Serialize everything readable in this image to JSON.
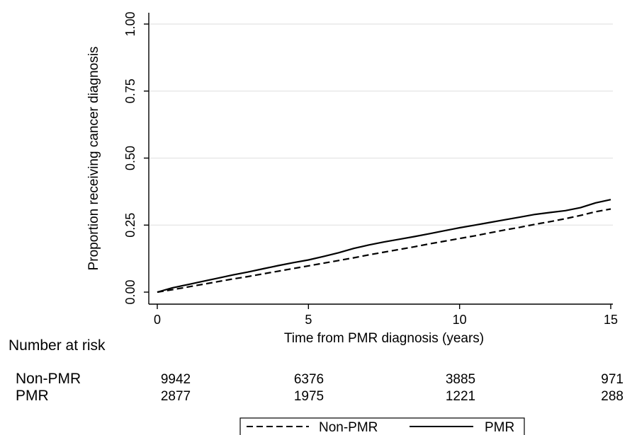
{
  "chart_data": {
    "type": "line",
    "xlabel": "Time from PMR diagnosis (years)",
    "ylabel": "Proportion receiving cancer diagnosis",
    "xlim": [
      0,
      15
    ],
    "ylim": [
      0,
      1
    ],
    "xticks": [
      0,
      5,
      10,
      15
    ],
    "yticks": [
      0,
      0.25,
      0.5,
      0.75,
      1
    ],
    "xtick_labels": [
      "0",
      "5",
      "10",
      "15"
    ],
    "ytick_labels": [
      "0.00",
      "0.25",
      "0.50",
      "0.75",
      "1.00"
    ],
    "grid": "horizontal",
    "series": [
      {
        "name": "Non-PMR",
        "style": "dashed",
        "color": "#000000",
        "points": [
          [
            0,
            0
          ],
          [
            0.5,
            0.009
          ],
          [
            1,
            0.019
          ],
          [
            1.5,
            0.029
          ],
          [
            2,
            0.039
          ],
          [
            2.5,
            0.049
          ],
          [
            3,
            0.058
          ],
          [
            3.5,
            0.068
          ],
          [
            4,
            0.078
          ],
          [
            4.5,
            0.088
          ],
          [
            5,
            0.098
          ],
          [
            5.5,
            0.108
          ],
          [
            6,
            0.118
          ],
          [
            6.5,
            0.128
          ],
          [
            7,
            0.139
          ],
          [
            7.5,
            0.149
          ],
          [
            8,
            0.159
          ],
          [
            8.5,
            0.169
          ],
          [
            9,
            0.18
          ],
          [
            9.5,
            0.19
          ],
          [
            10,
            0.2
          ],
          [
            10.5,
            0.21
          ],
          [
            11,
            0.221
          ],
          [
            11.5,
            0.232
          ],
          [
            12,
            0.242
          ],
          [
            12.5,
            0.253
          ],
          [
            13,
            0.263
          ],
          [
            13.5,
            0.274
          ],
          [
            14,
            0.286
          ],
          [
            14.5,
            0.3
          ],
          [
            15,
            0.31
          ]
        ]
      },
      {
        "name": "PMR",
        "style": "solid",
        "color": "#000000",
        "points": [
          [
            0,
            0
          ],
          [
            0.5,
            0.016
          ],
          [
            1,
            0.028
          ],
          [
            1.5,
            0.04
          ],
          [
            2,
            0.052
          ],
          [
            2.5,
            0.064
          ],
          [
            3,
            0.075
          ],
          [
            3.5,
            0.087
          ],
          [
            4,
            0.099
          ],
          [
            4.5,
            0.11
          ],
          [
            5,
            0.12
          ],
          [
            5.5,
            0.133
          ],
          [
            6,
            0.147
          ],
          [
            6.5,
            0.163
          ],
          [
            7,
            0.176
          ],
          [
            7.5,
            0.187
          ],
          [
            8,
            0.197
          ],
          [
            8.5,
            0.207
          ],
          [
            9,
            0.218
          ],
          [
            9.5,
            0.229
          ],
          [
            10,
            0.24
          ],
          [
            10.5,
            0.25
          ],
          [
            11,
            0.26
          ],
          [
            11.5,
            0.27
          ],
          [
            12,
            0.28
          ],
          [
            12.5,
            0.29
          ],
          [
            13,
            0.297
          ],
          [
            13.5,
            0.304
          ],
          [
            14,
            0.315
          ],
          [
            14.5,
            0.333
          ],
          [
            15,
            0.345
          ]
        ]
      }
    ],
    "risk_table": {
      "title": "Number at risk",
      "times": [
        0,
        5,
        10,
        15
      ],
      "rows": [
        {
          "label": "Non-PMR",
          "values": [
            "9942",
            "6376",
            "3885",
            "971"
          ]
        },
        {
          "label": "PMR",
          "values": [
            "2877",
            "1975",
            "1221",
            "288"
          ]
        }
      ]
    },
    "legend": {
      "position": "bottom-center",
      "entries": [
        {
          "label": "Non-PMR",
          "style": "dashed"
        },
        {
          "label": "PMR",
          "style": "solid"
        }
      ]
    }
  }
}
